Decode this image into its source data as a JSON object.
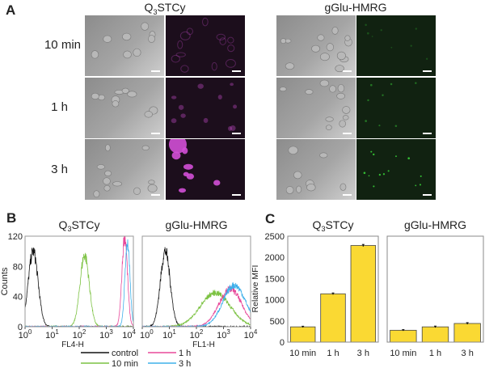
{
  "panel_labels": {
    "a": "A",
    "b": "B",
    "c": "C"
  },
  "probes": {
    "q3stcy": {
      "main": "Q",
      "sub": "3",
      "rest": "STCy"
    },
    "gglu": {
      "label": "gGlu-HMRG"
    }
  },
  "panel_a": {
    "rows": [
      "10 min",
      "1 h",
      "3 h"
    ]
  },
  "colors": {
    "control": "#111111",
    "10 min": "#7cc242",
    "1 h": "#e8489a",
    "3 h": "#3fb0ea",
    "bar_fill": "#fad933",
    "bar_edge": "#444444",
    "magenta": "#d14fd6",
    "green": "#39d639"
  },
  "chart_data": [
    {
      "type": "line",
      "title": "Q3STCy",
      "xlabel": "FL4-H",
      "ylabel": "Counts",
      "xscale": "log",
      "xlim_log10": [
        0,
        4
      ],
      "xtick_base": "10",
      "xtick_exponents": [
        0,
        1,
        2,
        3,
        4
      ],
      "ylim": [
        0,
        120
      ],
      "yticks": [
        0,
        40,
        80,
        120
      ],
      "series": [
        {
          "name": "control",
          "peak_log10": 0.3,
          "peak_count": 100,
          "sd_log10": 0.18
        },
        {
          "name": "10 min",
          "peak_log10": 2.2,
          "peak_count": 95,
          "sd_log10": 0.17
        },
        {
          "name": "1 h",
          "peak_log10": 3.68,
          "peak_count": 120,
          "sd_log10": 0.1
        },
        {
          "name": "3 h",
          "peak_log10": 3.78,
          "peak_count": 112,
          "sd_log10": 0.09
        }
      ]
    },
    {
      "type": "line",
      "title": "gGlu-HMRG",
      "xlabel": "FL1-H",
      "ylabel": "Counts",
      "xscale": "log",
      "xlim_log10": [
        0,
        4
      ],
      "xtick_base": "10",
      "xtick_exponents": [
        0,
        1,
        2,
        3,
        4
      ],
      "ylim": [
        0,
        120
      ],
      "yticks": [
        0,
        40,
        80,
        120
      ],
      "series": [
        {
          "name": "control",
          "peak_log10": 0.85,
          "peak_count": 100,
          "sd_log10": 0.18
        },
        {
          "name": "10 min",
          "peak_log10": 2.7,
          "peak_count": 45,
          "sd_log10": 0.55
        },
        {
          "name": "1 h",
          "peak_log10": 3.25,
          "peak_count": 50,
          "sd_log10": 0.42
        },
        {
          "name": "3 h",
          "peak_log10": 3.4,
          "peak_count": 55,
          "sd_log10": 0.42
        }
      ]
    },
    {
      "type": "bar",
      "title": "Q3STCy",
      "ylabel": "Relative MFI",
      "categories": [
        "10 min",
        "1 h",
        "3 h"
      ],
      "values": [
        360,
        1140,
        2280
      ],
      "errors": [
        15,
        20,
        25
      ],
      "ylim": [
        0,
        2500
      ],
      "yticks": [
        0,
        500,
        1000,
        1500,
        2000,
        2500
      ]
    },
    {
      "type": "bar",
      "title": "gGlu-HMRG",
      "ylabel": "Relative MFI",
      "categories": [
        "10 min",
        "1 h",
        "3 h"
      ],
      "values": [
        280,
        360,
        440
      ],
      "errors": [
        15,
        18,
        20
      ],
      "ylim": [
        0,
        2500
      ]
    }
  ],
  "legend": [
    "control",
    "1 h",
    "10 min",
    "3 h"
  ]
}
